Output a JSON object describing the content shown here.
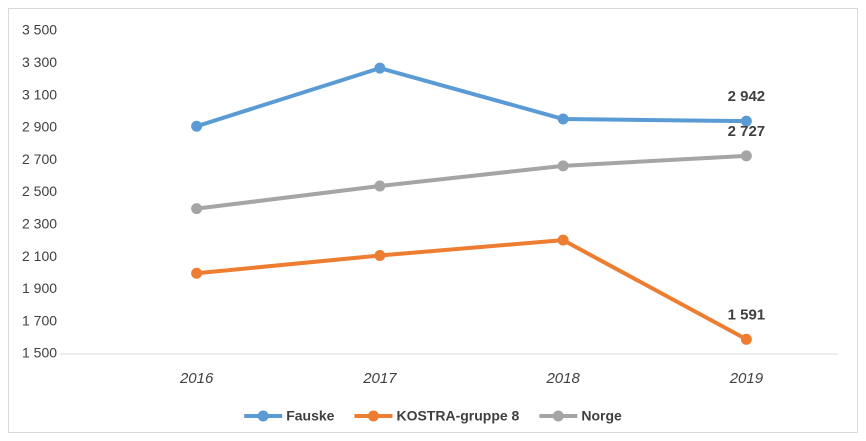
{
  "chart_data": {
    "type": "line",
    "categories": [
      "2016",
      "2017",
      "2018",
      "2019"
    ],
    "series": [
      {
        "name": "Fauske",
        "color": "#5b9bd5",
        "values": [
          2910,
          3270,
          2955,
          2942
        ],
        "value_labels": [
          null,
          null,
          null,
          "2 942"
        ]
      },
      {
        "name": "KOSTRA-gruppe 8",
        "color": "#ed7d31",
        "values": [
          2000,
          2110,
          2205,
          1591
        ],
        "value_labels": [
          null,
          null,
          null,
          "1 591"
        ]
      },
      {
        "name": "Norge",
        "color": "#a5a5a5",
        "values": [
          2400,
          2540,
          2665,
          2727
        ],
        "value_labels": [
          null,
          null,
          null,
          "2 727"
        ]
      }
    ],
    "ylim": [
      1500,
      3500
    ],
    "yticks": [
      {
        "value": 1500,
        "label": "1 500"
      },
      {
        "value": 1700,
        "label": "1 700"
      },
      {
        "value": 1900,
        "label": "1 900"
      },
      {
        "value": 2100,
        "label": "2 100"
      },
      {
        "value": 2300,
        "label": "2 300"
      },
      {
        "value": 2500,
        "label": "2 500"
      },
      {
        "value": 2700,
        "label": "2 700"
      },
      {
        "value": 2900,
        "label": "2 900"
      },
      {
        "value": 3100,
        "label": "3 100"
      },
      {
        "value": 3300,
        "label": "3 300"
      },
      {
        "value": 3500,
        "label": "3 500"
      }
    ],
    "grid": false,
    "legend": "bottom"
  }
}
